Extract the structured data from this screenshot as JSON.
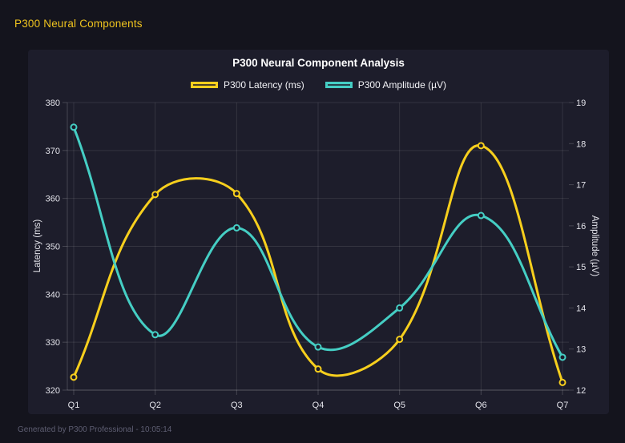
{
  "header": {
    "title": "P300 Neural Components"
  },
  "footer": {
    "text": "Generated by P300 Professional - 10:05:14"
  },
  "colors": {
    "background": "#14141d",
    "panel": "#1D1D2B",
    "accent_gold": "#F0C41E",
    "title_text": "#FFFFFF",
    "tick_text": "#E3E3EA",
    "grid": "rgba(255,255,255,0.10)",
    "axis_border": "rgba(255,255,255,0.18)"
  },
  "chart_data": {
    "type": "line",
    "title": "P300 Neural Component Analysis",
    "categories": [
      "Q1",
      "Q2",
      "Q3",
      "Q4",
      "Q5",
      "Q6",
      "Q7"
    ],
    "series": [
      {
        "name": "P300 Latency (ms)",
        "axis": "left",
        "color": "#F7CF1D",
        "values": [
          322.7,
          360.8,
          361.0,
          324.4,
          330.6,
          371.0,
          321.6
        ]
      },
      {
        "name": "P300 Amplitude (µV)",
        "axis": "right",
        "color": "#45CEC4",
        "values": [
          18.4,
          13.35,
          15.95,
          13.05,
          14.0,
          16.25,
          12.8
        ]
      }
    ],
    "left_axis": {
      "label": "Latency (ms)",
      "min": 320,
      "max": 380,
      "ticks": [
        320,
        330,
        340,
        350,
        360,
        370,
        380
      ]
    },
    "right_axis": {
      "label": "Amplitude (µV)",
      "min": 12,
      "max": 19,
      "ticks": [
        12,
        13,
        14,
        15,
        16,
        17,
        18,
        19
      ]
    },
    "grid": true,
    "legend_position": "top",
    "line_tension": 0.4
  }
}
